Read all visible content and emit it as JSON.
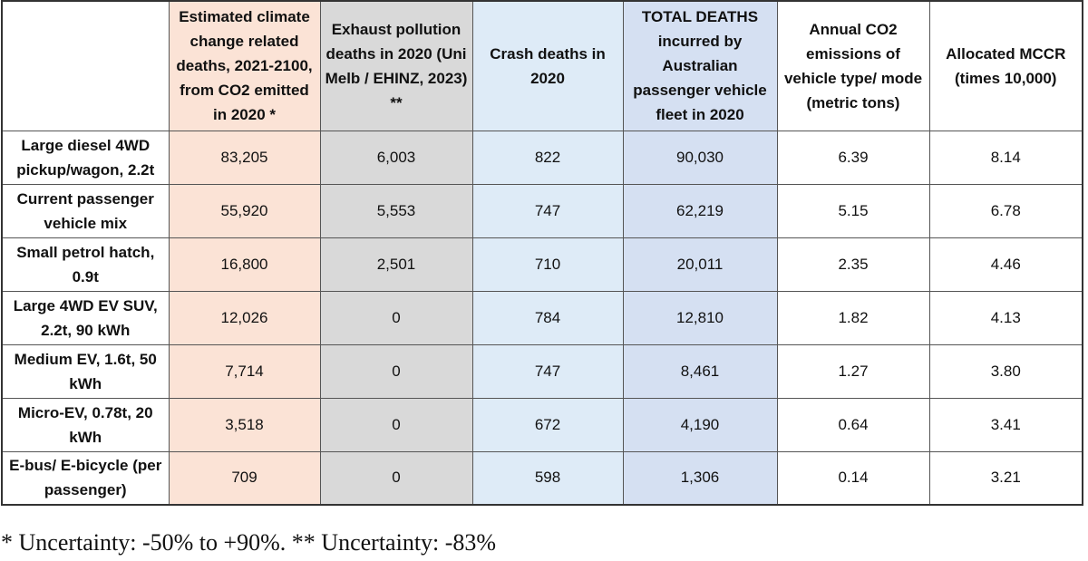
{
  "table": {
    "headers": [
      "",
      "Estimated climate change related deaths, 2021-2100, from CO2 emitted in 2020 *",
      "Exhaust pollution deaths in 2020 (Uni Melb / EHINZ, 2023) **",
      "Crash deaths in 2020",
      "TOTAL DEATHS incurred by Australian passenger vehicle fleet in 2020",
      "Annual CO2 emissions of vehicle type/ mode (metric tons)",
      "Allocated MCCR (times 10,000)"
    ],
    "rows": [
      {
        "label": "Large diesel 4WD pickup/wagon, 2.2t",
        "values": [
          "83,205",
          "6,003",
          "822",
          "90,030",
          "6.39",
          "8.14"
        ]
      },
      {
        "label": "Current  passenger vehicle mix",
        "values": [
          "55,920",
          "5,553",
          "747",
          "62,219",
          "5.15",
          "6.78"
        ]
      },
      {
        "label": "Small petrol hatch, 0.9t",
        "values": [
          "16,800",
          "2,501",
          "710",
          "20,011",
          "2.35",
          "4.46"
        ]
      },
      {
        "label": "Large 4WD EV  SUV, 2.2t, 90 kWh",
        "values": [
          "12,026",
          "0",
          "784",
          "12,810",
          "1.82",
          "4.13"
        ]
      },
      {
        "label": "Medium EV, 1.6t, 50 kWh",
        "values": [
          "7,714",
          "0",
          "747",
          "8,461",
          "1.27",
          "3.80"
        ]
      },
      {
        "label": "Micro-EV, 0.78t, 20 kWh",
        "values": [
          "3,518",
          "0",
          "672",
          "4,190",
          "0.64",
          "3.41"
        ]
      },
      {
        "label": "E-bus/ E-bicycle (per passenger)",
        "values": [
          "709",
          "0",
          "598",
          "1,306",
          "0.14",
          "3.21"
        ]
      }
    ],
    "column_colors": [
      "#ffffff",
      "#fbe3d6",
      "#d9d9d9",
      "#deebf7",
      "#d5e0f2",
      "#ffffff",
      "#ffffff"
    ]
  },
  "footnote": "* Uncertainty: -50% to +90%. ** Uncertainty: -83%"
}
